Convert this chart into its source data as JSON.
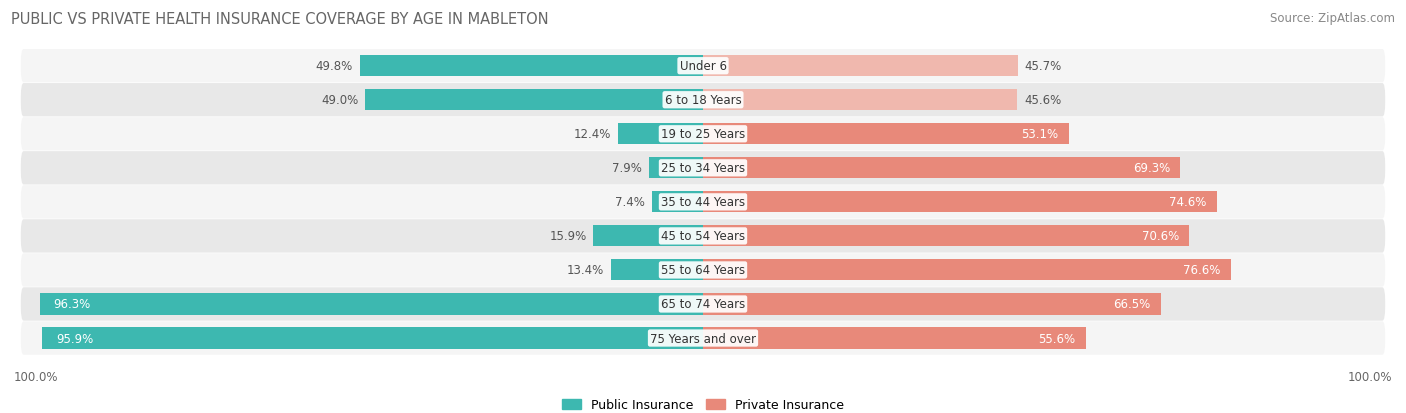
{
  "title": "PUBLIC VS PRIVATE HEALTH INSURANCE COVERAGE BY AGE IN MABLETON",
  "source": "Source: ZipAtlas.com",
  "categories": [
    "Under 6",
    "6 to 18 Years",
    "19 to 25 Years",
    "25 to 34 Years",
    "35 to 44 Years",
    "45 to 54 Years",
    "55 to 64 Years",
    "65 to 74 Years",
    "75 Years and over"
  ],
  "public_values": [
    49.8,
    49.0,
    12.4,
    7.9,
    7.4,
    15.9,
    13.4,
    96.3,
    95.9
  ],
  "private_values": [
    45.7,
    45.6,
    53.1,
    69.3,
    74.6,
    70.6,
    76.6,
    66.5,
    55.6
  ],
  "public_color": "#3db8b0",
  "private_color": "#e8897a",
  "private_color_light": "#f0b8ae",
  "bg_color": "#ffffff",
  "row_bg_odd": "#f5f5f5",
  "row_bg_even": "#e8e8e8",
  "max_value": 100.0,
  "title_fontsize": 10.5,
  "label_fontsize": 8.5,
  "category_fontsize": 8.5,
  "legend_fontsize": 9,
  "source_fontsize": 8.5,
  "title_color": "#666666",
  "source_color": "#888888",
  "label_color_dark": "#555555",
  "label_color_white": "#ffffff"
}
